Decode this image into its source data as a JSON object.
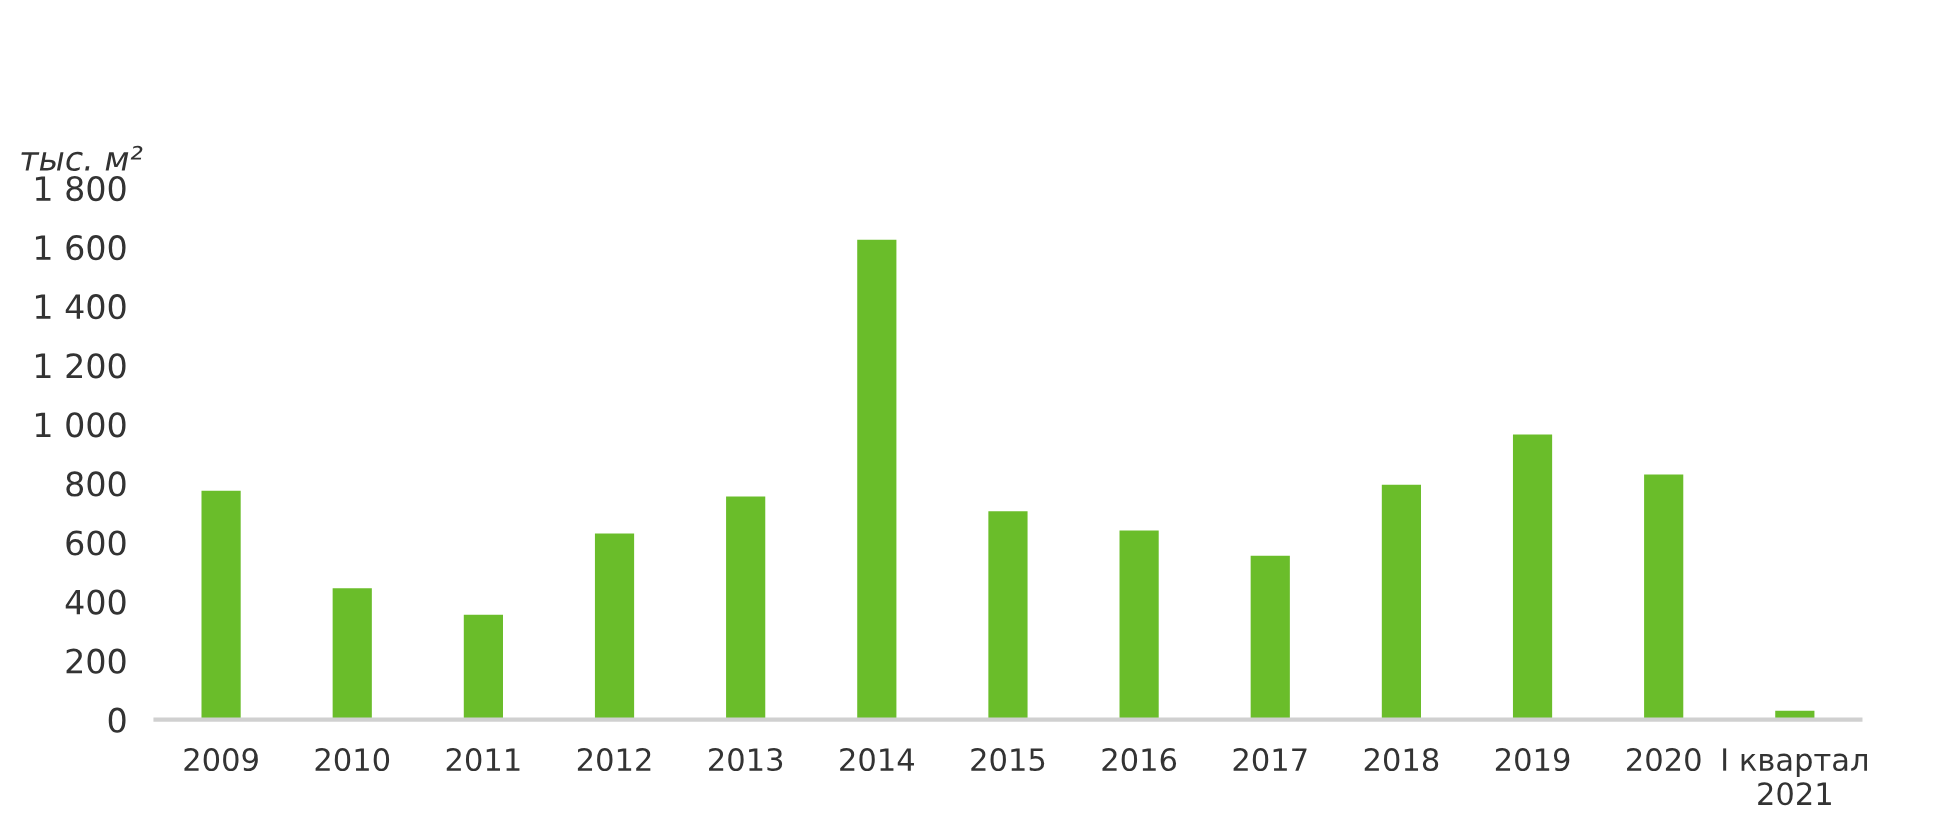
{
  "chart_data": {
    "type": "bar",
    "ylabel": "тыс. м²",
    "categories": [
      "2009",
      "2010",
      "2011",
      "2012",
      "2013",
      "2014",
      "2015",
      "2016",
      "2017",
      "2018",
      "2019",
      "2020",
      "I квартал\n2021"
    ],
    "values": [
      780,
      450,
      360,
      635,
      760,
      1630,
      710,
      645,
      560,
      800,
      970,
      835,
      35
    ],
    "color": "#6abd2a",
    "ylim": [
      0,
      1800
    ],
    "yticks": [
      0,
      200,
      400,
      600,
      800,
      {
        "value": 1000,
        "label": "1 000"
      },
      {
        "value": 1200,
        "label": "1 200"
      },
      {
        "value": 1400,
        "label": "1 400"
      },
      {
        "value": 1600,
        "label": "1 600"
      },
      {
        "value": 1800,
        "label": "1 800"
      }
    ],
    "grid": false
  }
}
